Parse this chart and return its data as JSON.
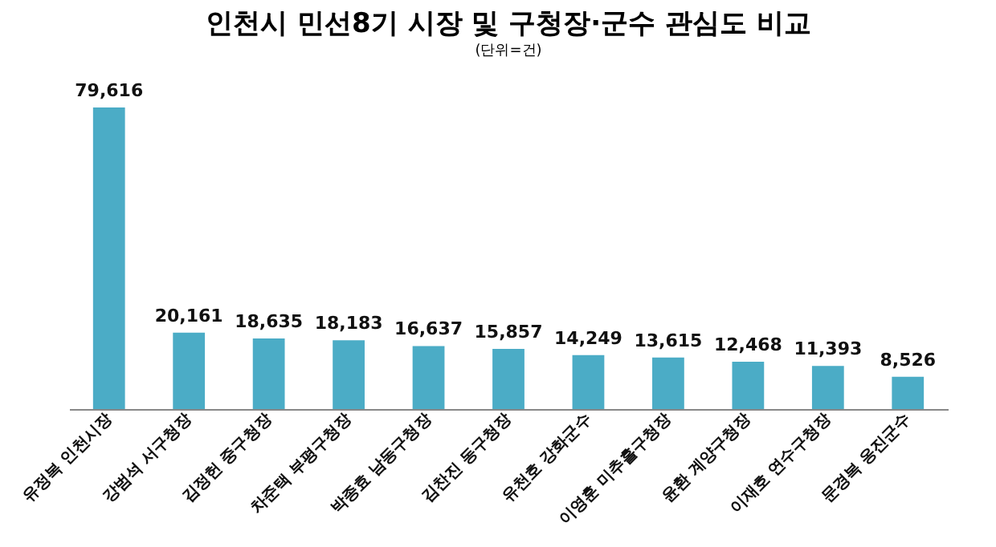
{
  "chart_data": {
    "type": "bar",
    "title": "인천시 민선8기 시장 및 구청장·군수 관심도 비교",
    "subtitle": "(단위=건)",
    "categories": [
      "유정복 인천시장",
      "강범석 서구청장",
      "김정헌 중구청장",
      "차준택 부평구청장",
      "박종효 남동구청장",
      "김찬진 동구청장",
      "유천호 강화군수",
      "이영훈 미추홀구청장",
      "윤환 계양구청장",
      "이재호 연수구청장",
      "문경복 옹진군수"
    ],
    "values": [
      79616,
      20161,
      18635,
      18183,
      16637,
      15857,
      14249,
      13615,
      12468,
      11393,
      8526
    ],
    "value_labels": [
      "79,616",
      "20,161",
      "18,635",
      "18,183",
      "16,637",
      "15,857",
      "14,249",
      "13,615",
      "12,468",
      "11,393",
      "8,526"
    ],
    "color": "#4bacc6"
  }
}
